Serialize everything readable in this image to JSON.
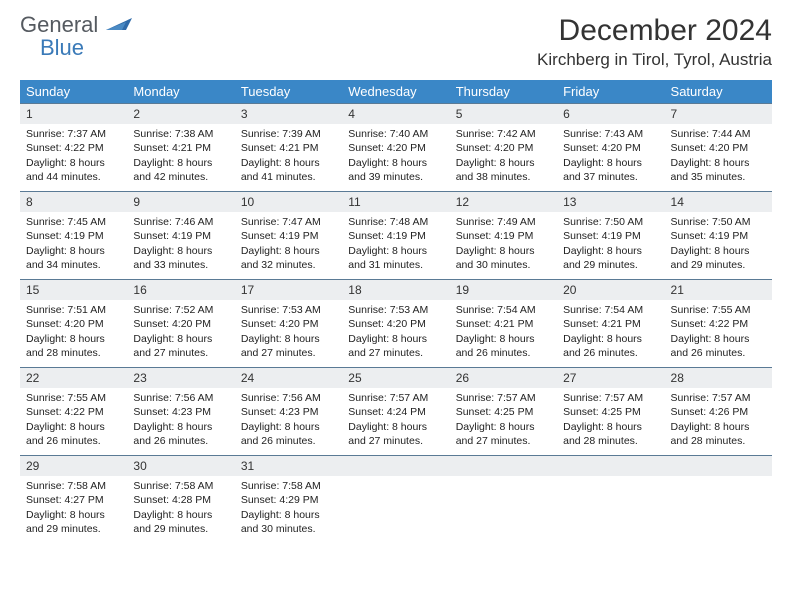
{
  "brand": {
    "text1": "General",
    "text2": "Blue",
    "color1": "#555a60",
    "color2": "#3a7ab8"
  },
  "title": "December 2024",
  "location": "Kirchberg in Tirol, Tyrol, Austria",
  "header_bg": "#3a87c7",
  "daynum_bg": "#eceef0",
  "border_color": "#5a7a95",
  "weekdays": [
    "Sunday",
    "Monday",
    "Tuesday",
    "Wednesday",
    "Thursday",
    "Friday",
    "Saturday"
  ],
  "days": [
    {
      "n": "1",
      "sunrise": "7:37 AM",
      "sunset": "4:22 PM",
      "daylight": "8 hours and 44 minutes."
    },
    {
      "n": "2",
      "sunrise": "7:38 AM",
      "sunset": "4:21 PM",
      "daylight": "8 hours and 42 minutes."
    },
    {
      "n": "3",
      "sunrise": "7:39 AM",
      "sunset": "4:21 PM",
      "daylight": "8 hours and 41 minutes."
    },
    {
      "n": "4",
      "sunrise": "7:40 AM",
      "sunset": "4:20 PM",
      "daylight": "8 hours and 39 minutes."
    },
    {
      "n": "5",
      "sunrise": "7:42 AM",
      "sunset": "4:20 PM",
      "daylight": "8 hours and 38 minutes."
    },
    {
      "n": "6",
      "sunrise": "7:43 AM",
      "sunset": "4:20 PM",
      "daylight": "8 hours and 37 minutes."
    },
    {
      "n": "7",
      "sunrise": "7:44 AM",
      "sunset": "4:20 PM",
      "daylight": "8 hours and 35 minutes."
    },
    {
      "n": "8",
      "sunrise": "7:45 AM",
      "sunset": "4:19 PM",
      "daylight": "8 hours and 34 minutes."
    },
    {
      "n": "9",
      "sunrise": "7:46 AM",
      "sunset": "4:19 PM",
      "daylight": "8 hours and 33 minutes."
    },
    {
      "n": "10",
      "sunrise": "7:47 AM",
      "sunset": "4:19 PM",
      "daylight": "8 hours and 32 minutes."
    },
    {
      "n": "11",
      "sunrise": "7:48 AM",
      "sunset": "4:19 PM",
      "daylight": "8 hours and 31 minutes."
    },
    {
      "n": "12",
      "sunrise": "7:49 AM",
      "sunset": "4:19 PM",
      "daylight": "8 hours and 30 minutes."
    },
    {
      "n": "13",
      "sunrise": "7:50 AM",
      "sunset": "4:19 PM",
      "daylight": "8 hours and 29 minutes."
    },
    {
      "n": "14",
      "sunrise": "7:50 AM",
      "sunset": "4:19 PM",
      "daylight": "8 hours and 29 minutes."
    },
    {
      "n": "15",
      "sunrise": "7:51 AM",
      "sunset": "4:20 PM",
      "daylight": "8 hours and 28 minutes."
    },
    {
      "n": "16",
      "sunrise": "7:52 AM",
      "sunset": "4:20 PM",
      "daylight": "8 hours and 27 minutes."
    },
    {
      "n": "17",
      "sunrise": "7:53 AM",
      "sunset": "4:20 PM",
      "daylight": "8 hours and 27 minutes."
    },
    {
      "n": "18",
      "sunrise": "7:53 AM",
      "sunset": "4:20 PM",
      "daylight": "8 hours and 27 minutes."
    },
    {
      "n": "19",
      "sunrise": "7:54 AM",
      "sunset": "4:21 PM",
      "daylight": "8 hours and 26 minutes."
    },
    {
      "n": "20",
      "sunrise": "7:54 AM",
      "sunset": "4:21 PM",
      "daylight": "8 hours and 26 minutes."
    },
    {
      "n": "21",
      "sunrise": "7:55 AM",
      "sunset": "4:22 PM",
      "daylight": "8 hours and 26 minutes."
    },
    {
      "n": "22",
      "sunrise": "7:55 AM",
      "sunset": "4:22 PM",
      "daylight": "8 hours and 26 minutes."
    },
    {
      "n": "23",
      "sunrise": "7:56 AM",
      "sunset": "4:23 PM",
      "daylight": "8 hours and 26 minutes."
    },
    {
      "n": "24",
      "sunrise": "7:56 AM",
      "sunset": "4:23 PM",
      "daylight": "8 hours and 26 minutes."
    },
    {
      "n": "25",
      "sunrise": "7:57 AM",
      "sunset": "4:24 PM",
      "daylight": "8 hours and 27 minutes."
    },
    {
      "n": "26",
      "sunrise": "7:57 AM",
      "sunset": "4:25 PM",
      "daylight": "8 hours and 27 minutes."
    },
    {
      "n": "27",
      "sunrise": "7:57 AM",
      "sunset": "4:25 PM",
      "daylight": "8 hours and 28 minutes."
    },
    {
      "n": "28",
      "sunrise": "7:57 AM",
      "sunset": "4:26 PM",
      "daylight": "8 hours and 28 minutes."
    },
    {
      "n": "29",
      "sunrise": "7:58 AM",
      "sunset": "4:27 PM",
      "daylight": "8 hours and 29 minutes."
    },
    {
      "n": "30",
      "sunrise": "7:58 AM",
      "sunset": "4:28 PM",
      "daylight": "8 hours and 29 minutes."
    },
    {
      "n": "31",
      "sunrise": "7:58 AM",
      "sunset": "4:29 PM",
      "daylight": "8 hours and 30 minutes."
    }
  ],
  "labels": {
    "sunrise": "Sunrise:",
    "sunset": "Sunset:",
    "daylight": "Daylight:"
  }
}
